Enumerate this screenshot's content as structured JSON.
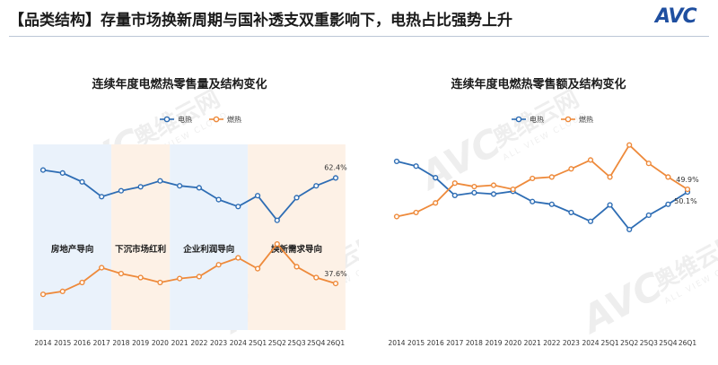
{
  "header": {
    "title": "【品类结构】存量市场换新周期与国补透支双重影响下，电热占比强势上升",
    "logo": "AVC"
  },
  "watermark": {
    "brand": "AVC",
    "cn": "奥维云网",
    "en": "ALL VIEW CLOUD"
  },
  "colors": {
    "electric": "#2e6db4",
    "gas": "#ee8a3b"
  },
  "chart_data": [
    {
      "type": "line",
      "title": "连续年度电燃热零售量及结构变化",
      "categories": [
        "2014",
        "2015",
        "2016",
        "2017",
        "2018",
        "2019",
        "2020",
        "2021",
        "2022",
        "2023",
        "2024",
        "25Q1",
        "25Q2",
        "25Q3",
        "25Q4",
        "26Q1"
      ],
      "series": [
        {
          "name": "电热",
          "values": [
            82,
            80.5,
            76,
            68.5,
            71.5,
            73.5,
            76.5,
            74,
            73,
            67,
            63.5,
            69,
            56.5,
            68,
            74,
            78
          ]
        },
        {
          "name": "燃热",
          "values": [
            19,
            20.5,
            25,
            32.5,
            29.5,
            27.5,
            25,
            27,
            28,
            34,
            37.5,
            32,
            44.5,
            33,
            27.5,
            24.5
          ]
        }
      ],
      "labels": [
        {
          "series": "电热",
          "category": "26Q1",
          "text": "62.4%"
        },
        {
          "series": "燃热",
          "category": "26Q1",
          "text": "37.6%"
        }
      ],
      "bands": [
        {
          "label": "房地产导向",
          "from": "2014",
          "to": "2017",
          "color": "#eaf2fb"
        },
        {
          "label": "下沉市场红利",
          "from": "2017",
          "to": "2020",
          "color": "#fdf1e6"
        },
        {
          "label": "企业利润导向",
          "from": "2020",
          "to": "2024",
          "color": "#eaf2fb"
        },
        {
          "label": "换新需求导向",
          "from": "2024",
          "to": "26Q1",
          "color": "#fdf1e6"
        }
      ],
      "legend": "top-left"
    },
    {
      "type": "line",
      "title": "连续年度电燃热零售额及结构变化",
      "categories": [
        "2014",
        "2015",
        "2016",
        "2017",
        "2018",
        "2019",
        "2020",
        "2021",
        "2022",
        "2023",
        "2024",
        "25Q1",
        "25Q2",
        "25Q3",
        "25Q4",
        "26Q1"
      ],
      "series": [
        {
          "name": "电热",
          "values": [
            79,
            75.5,
            67,
            54,
            56,
            55,
            57,
            49.5,
            47.5,
            41.5,
            35,
            47,
            29,
            39.5,
            47.5,
            56.5
          ]
        },
        {
          "name": "燃热",
          "values": [
            38.5,
            41.5,
            48.5,
            63,
            60.5,
            61.5,
            58.5,
            66.5,
            67.5,
            73.5,
            80,
            67.5,
            91,
            77.5,
            67.5,
            58.5
          ]
        }
      ],
      "labels": [
        {
          "series": "燃热",
          "category": "26Q1",
          "text": "49.9%"
        },
        {
          "series": "电热",
          "category": "26Q1",
          "text": "50.1%"
        }
      ],
      "legend": "top-left"
    }
  ]
}
